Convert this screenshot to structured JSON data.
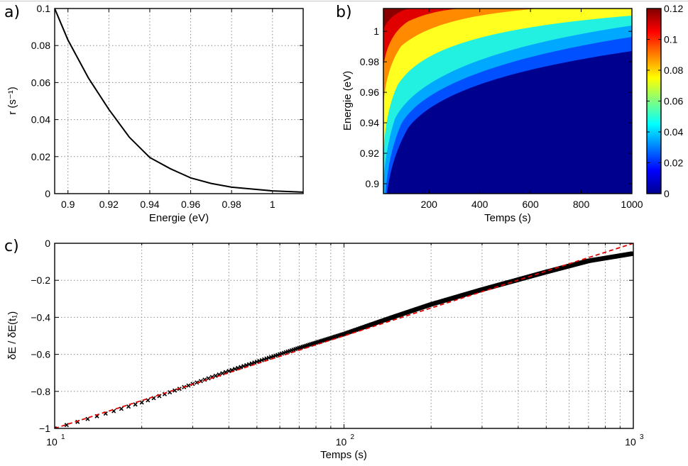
{
  "panels": {
    "a": "a)",
    "b": "b)",
    "c": "c)"
  },
  "chart_data": [
    {
      "id": "a",
      "type": "line",
      "xlabel": "Energie (eV)",
      "ylabel": "r (s⁻¹)",
      "xlim": [
        0.8935,
        1.015
      ],
      "ylim": [
        0,
        0.1
      ],
      "xticks": [
        0.9,
        0.92,
        0.94,
        0.96,
        0.98,
        1
      ],
      "xtick_labels": [
        "0.9",
        "0.92",
        "0.94",
        "0.96",
        "0.98",
        "1"
      ],
      "yticks": [
        0,
        0.02,
        0.04,
        0.06,
        0.08,
        0.1
      ],
      "ytick_labels": [
        "0",
        "0.02",
        "0.04",
        "0.06",
        "0.08",
        "0.1"
      ],
      "grid": true,
      "series": [
        {
          "color": "#000000",
          "x": [
            0.8935,
            0.9,
            0.91,
            0.92,
            0.93,
            0.94,
            0.95,
            0.96,
            0.97,
            0.98,
            0.99,
            1.0,
            1.015
          ],
          "y": [
            0.1,
            0.083,
            0.0625,
            0.0455,
            0.0305,
            0.0195,
            0.0135,
            0.0085,
            0.0055,
            0.0035,
            0.0025,
            0.0015,
            0.0008
          ]
        }
      ]
    },
    {
      "id": "b",
      "type": "heatmap",
      "xlabel": "Temps (s)",
      "ylabel": "Energie (eV)",
      "xlim": [
        20,
        1000
      ],
      "ylim": [
        0.8935,
        1.015
      ],
      "xticks": [
        200,
        400,
        600,
        800,
        1000
      ],
      "xtick_labels": [
        "200",
        "400",
        "600",
        "800",
        "1000"
      ],
      "yticks": [
        0.9,
        0.92,
        0.94,
        0.96,
        0.98,
        1
      ],
      "ytick_labels": [
        "0.9",
        "0.92",
        "0.94",
        "0.96",
        "0.98",
        "1"
      ],
      "colorbar": {
        "range": [
          0,
          0.12
        ],
        "ticks": [
          0,
          0.02,
          0.04,
          0.06,
          0.08,
          0.1,
          0.12
        ],
        "tick_labels": [
          "0",
          "0.02",
          "0.04",
          "0.06",
          "0.08",
          "0.1",
          "0.12"
        ],
        "colormap": "jet"
      },
      "description_values": {
        "contours": [
          {
            "level": 0.04,
            "E_at_t": [
              [
                20,
                0.894
              ],
              [
                60,
                0.94
              ],
              [
                200,
                0.975
              ],
              [
                500,
                0.995
              ],
              [
                1000,
                1.006
              ]
            ]
          },
          {
            "level": 0.08,
            "E_at_t": [
              [
                20,
                0.93
              ],
              [
                60,
                0.975
              ],
              [
                200,
                1.0
              ],
              [
                500,
                1.012
              ],
              [
                1000,
                1.015
              ]
            ]
          }
        ]
      }
    },
    {
      "id": "c",
      "type": "scatter",
      "xlabel": "Temps (s)",
      "ylabel": "δE / δE(t₁)",
      "xscale": "log",
      "xlim": [
        10,
        1000
      ],
      "ylim": [
        -1,
        0
      ],
      "xticks": [
        10,
        100,
        1000
      ],
      "xtick_labels": [
        "10",
        "10",
        "10"
      ],
      "xtick_exponents": [
        "1",
        "2",
        "3"
      ],
      "yticks": [
        -1,
        -0.8,
        -0.6,
        -0.4,
        -0.2,
        0
      ],
      "ytick_labels": [
        "−1",
        "−0.8",
        "−0.6",
        "−0.4",
        "−0.2",
        "0"
      ],
      "grid": true,
      "series": [
        {
          "marker": "x",
          "color": "#000000",
          "x": [
            10,
            12,
            15,
            20,
            30,
            40,
            50,
            70,
            100,
            150,
            200,
            300,
            500,
            700,
            1000
          ],
          "y": [
            -1.0,
            -0.965,
            -0.92,
            -0.86,
            -0.76,
            -0.69,
            -0.64,
            -0.565,
            -0.49,
            -0.395,
            -0.33,
            -0.25,
            -0.155,
            -0.095,
            -0.055
          ]
        },
        {
          "line": "dashed",
          "color": "#e00000",
          "x": [
            10,
            1000
          ],
          "y": [
            -1,
            0
          ]
        }
      ]
    }
  ]
}
